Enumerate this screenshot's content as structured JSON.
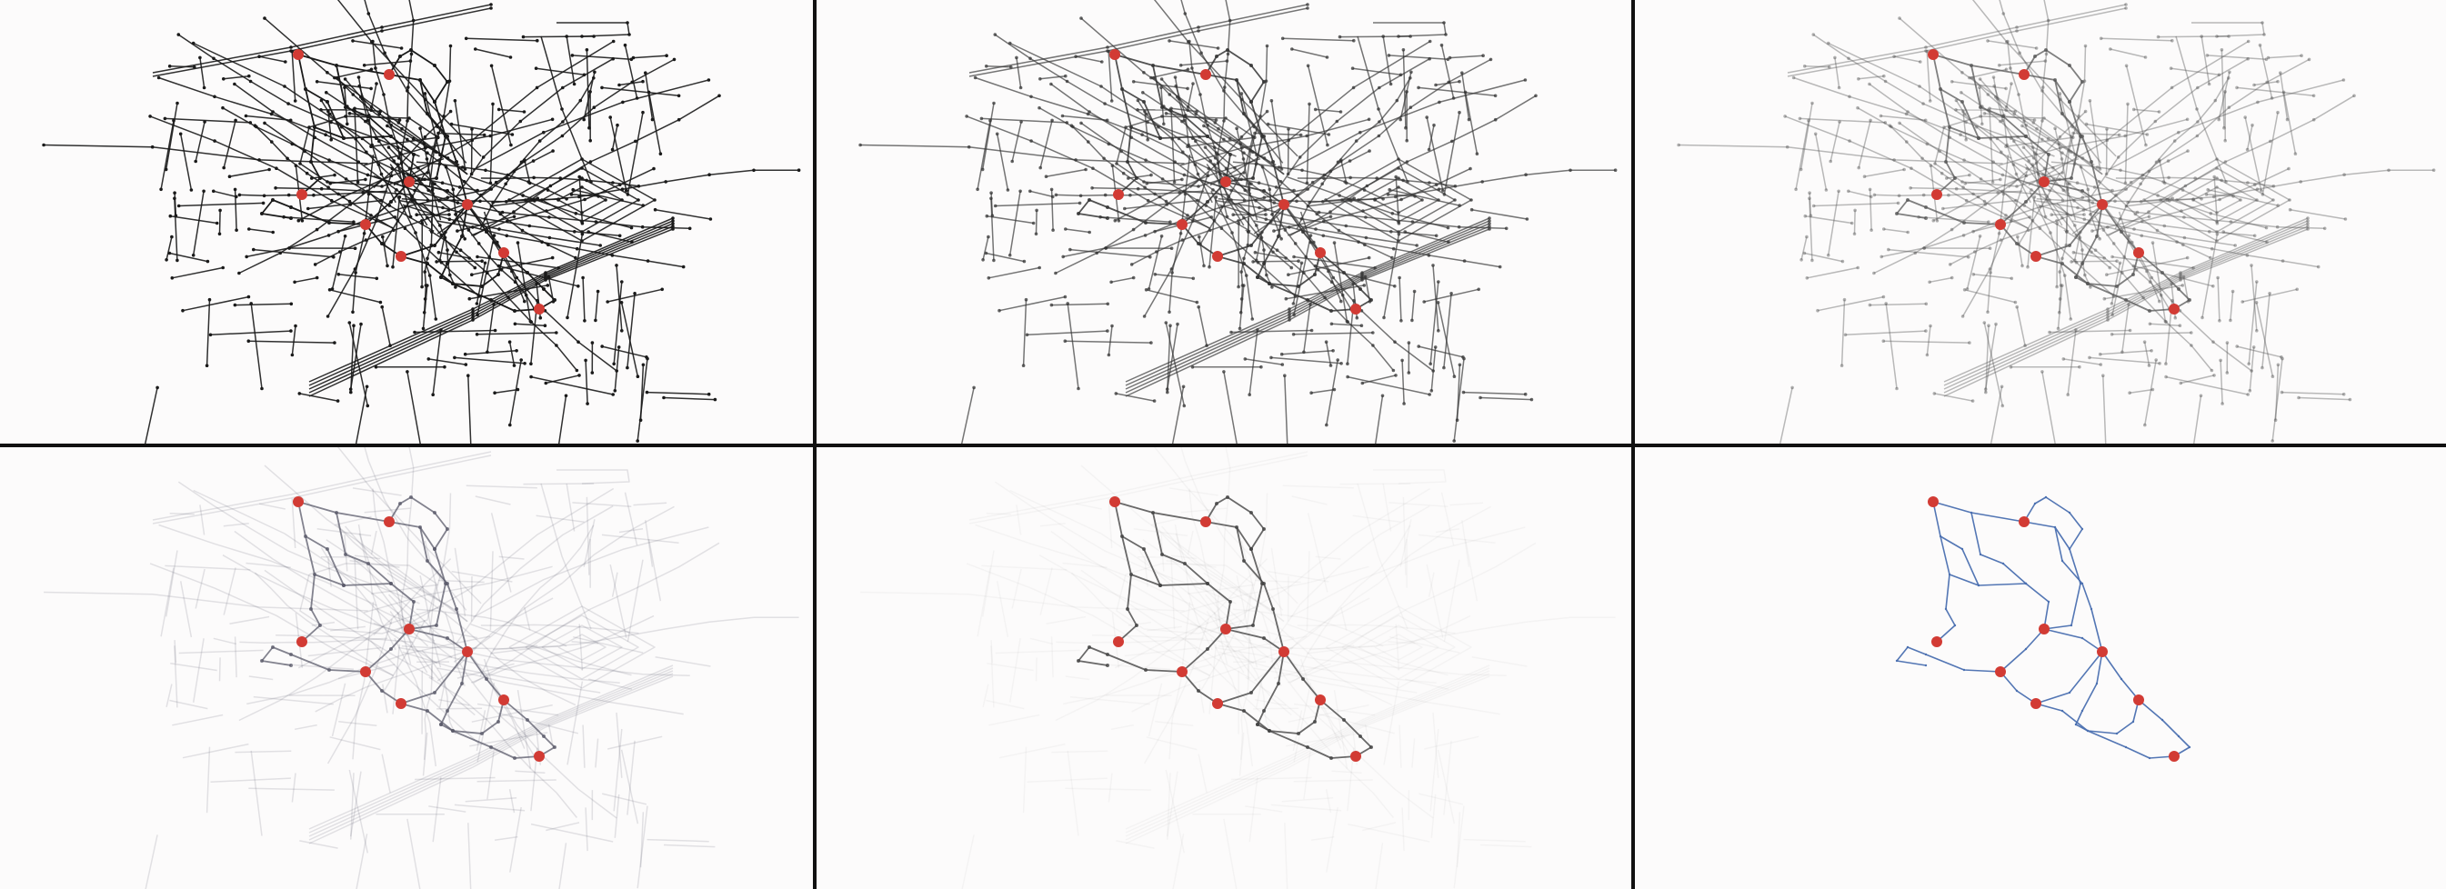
{
  "figure": {
    "panels": [
      {
        "id": "stage-1",
        "edge_color": "#1a1a1a",
        "edge_opacity": 1.0,
        "node_color": "#1a1a1a",
        "pruned_opacity": 1.0,
        "subgraph_only": false
      },
      {
        "id": "stage-2",
        "edge_color": "#333333",
        "edge_opacity": 0.85,
        "node_color": "#333333",
        "pruned_opacity": 0.75,
        "subgraph_only": false
      },
      {
        "id": "stage-3",
        "edge_color": "#555555",
        "edge_opacity": 0.75,
        "node_color": "#555555",
        "pruned_opacity": 0.45,
        "subgraph_only": false
      },
      {
        "id": "stage-4",
        "edge_color": "#5a5a6a",
        "edge_opacity": 0.75,
        "node_color": "#5a5a6a",
        "pruned_opacity": 0.18,
        "subgraph_only": false
      },
      {
        "id": "stage-5",
        "edge_color": "#444444",
        "edge_opacity": 0.8,
        "node_color": "#444444",
        "pruned_opacity": 0.05,
        "subgraph_only": false
      },
      {
        "id": "stage-6",
        "edge_color": "#4a6fb0",
        "edge_opacity": 0.95,
        "node_color": "#4a6fb0",
        "pruned_opacity": 0.0,
        "subgraph_only": true
      }
    ],
    "terminal_color": "#d23b34",
    "background": "#fcfbfb",
    "divider_color": "#111111"
  }
}
